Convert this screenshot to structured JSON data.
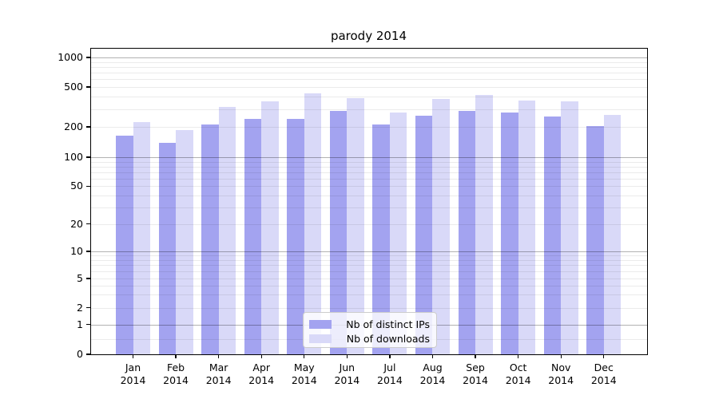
{
  "chart_data": {
    "type": "bar",
    "title": "parody 2014",
    "categories": [
      "Jan",
      "Feb",
      "Mar",
      "Apr",
      "May",
      "Jun",
      "Jul",
      "Aug",
      "Sep",
      "Oct",
      "Nov",
      "Dec"
    ],
    "year_label": "2014",
    "series": [
      {
        "name": "Nb of distinct IPs",
        "color": "#a3a3f0",
        "values": [
          165,
          140,
          210,
          240,
          240,
          290,
          210,
          260,
          290,
          280,
          255,
          205
        ]
      },
      {
        "name": "Nb of downloads",
        "color": "#d9d9f8",
        "values": [
          225,
          185,
          315,
          360,
          435,
          385,
          280,
          380,
          420,
          365,
          360,
          265
        ]
      }
    ],
    "yscale": "symlog",
    "ylim": [
      0,
      1250
    ],
    "y_ticks": [
      0,
      1,
      2,
      5,
      10,
      20,
      50,
      100,
      200,
      500,
      1000
    ],
    "grid": "horizontal major+minor, drawn above bars",
    "legend_position": "lower center",
    "xlabel": "",
    "ylabel": ""
  },
  "colors": {
    "background": "#ffffff",
    "axis_frame": "#000000",
    "major_grid": "#b3b3b3",
    "minor_grid": "#ebebeb",
    "legend_border": "#cccccc"
  }
}
